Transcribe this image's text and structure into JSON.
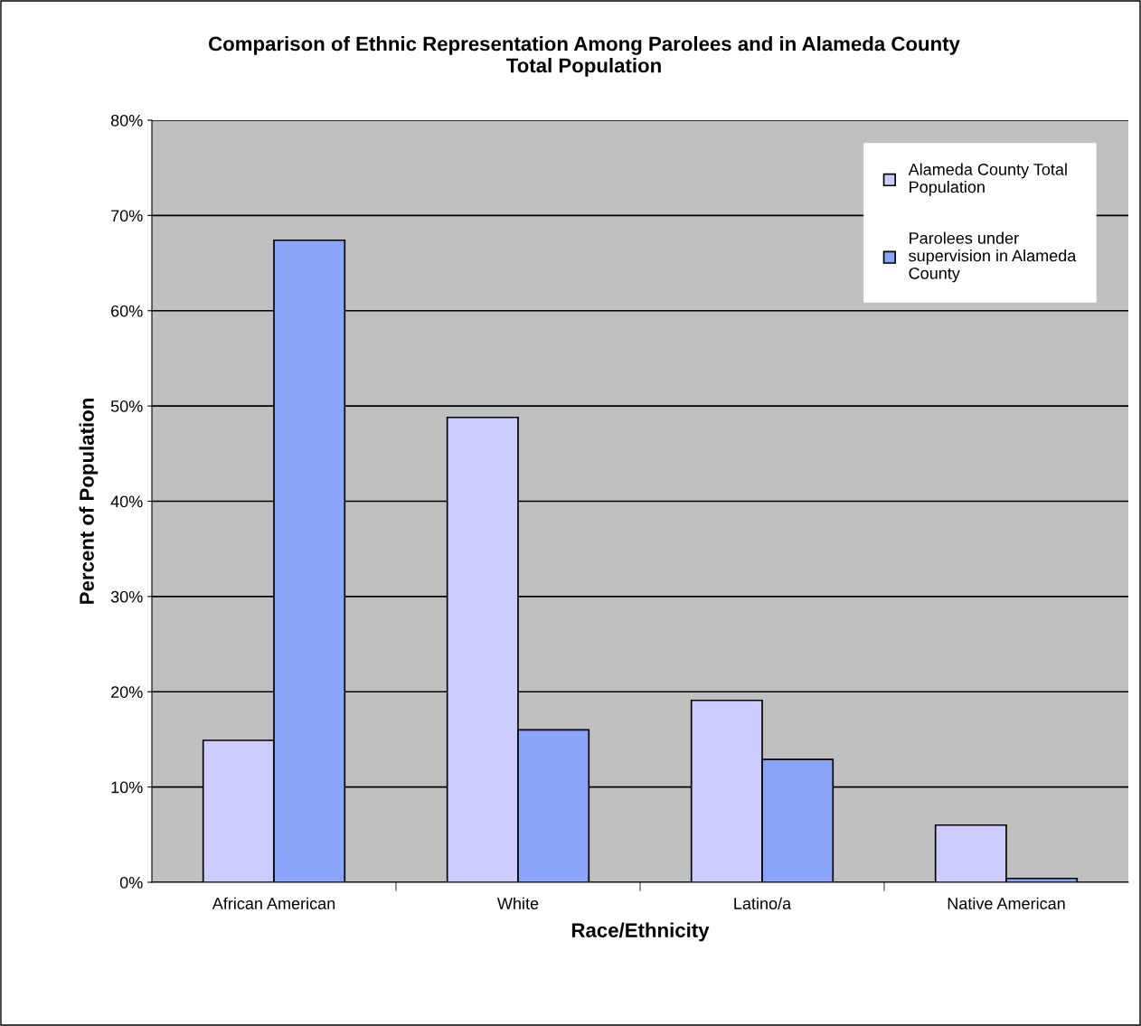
{
  "chart_data": {
    "type": "bar",
    "title": "Comparison of Ethnic Representation Among Parolees and in Alameda County\nTotal Population",
    "xlabel": "Race/Ethnicity",
    "ylabel": "Percent of Population",
    "categories": [
      "African American",
      "White",
      "Latino/a",
      "Native American"
    ],
    "series": [
      {
        "name": "Alameda County Total\nPopulation",
        "color": "#ccccff",
        "values": [
          14.9,
          48.8,
          19.1,
          6.0
        ]
      },
      {
        "name": "Parolees under\nsupervision in Alameda\nCounty",
        "color": "#8aa4f8",
        "values": [
          67.4,
          16.0,
          12.9,
          0.4
        ]
      }
    ],
    "ylim": [
      0,
      80
    ],
    "yticks": [
      {
        "value": 0,
        "label": "0%"
      },
      {
        "value": 10,
        "label": "10%"
      },
      {
        "value": 20,
        "label": "20%"
      },
      {
        "value": 30,
        "label": "30%"
      },
      {
        "value": 40,
        "label": "40%"
      },
      {
        "value": 50,
        "label": "50%"
      },
      {
        "value": 60,
        "label": "60%"
      },
      {
        "value": 70,
        "label": "70%"
      },
      {
        "value": 80,
        "label": "80%"
      }
    ],
    "grid": "y",
    "legend": "top right"
  }
}
